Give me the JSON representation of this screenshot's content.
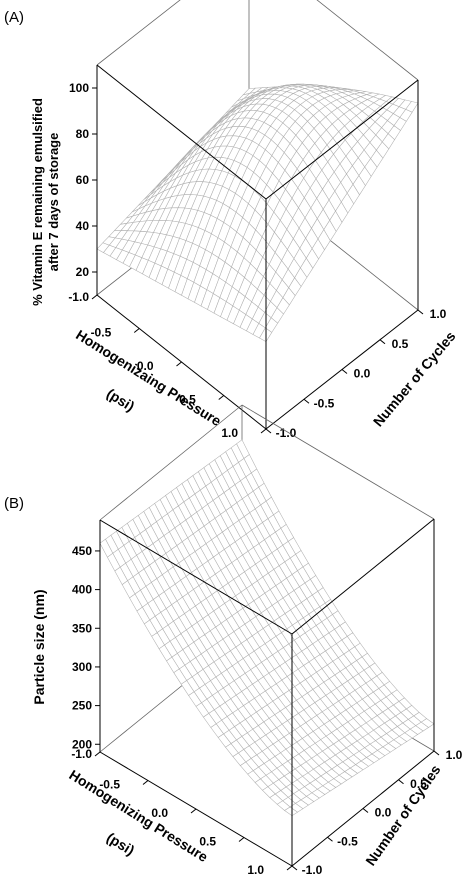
{
  "chart_data": [
    {
      "panel": "(A)",
      "type": "surface",
      "zlabel": "% Vitamin E remaining emulsified after 7 days of storage",
      "zlabel_lines": [
        "% Vitamin E remaining emulsified",
        "after 7 days of storage"
      ],
      "xlabel": "Homogenizaing Pressure (psi)",
      "xlabel_lines": [
        "Homogenizaing Pressure",
        "(psi)"
      ],
      "ylabel": "Number of Cycles",
      "x_ticks": [
        "-1.0",
        "-0.5",
        "0.0",
        "0.5",
        "1.0"
      ],
      "y_ticks": [
        "-1.0",
        "-0.5",
        "0.0",
        "0.5",
        "1.0"
      ],
      "z_ticks": [
        "20",
        "40",
        "60",
        "80",
        "100"
      ],
      "xlim": [
        -1,
        1
      ],
      "ylim": [
        -1,
        1
      ],
      "zlim": [
        10,
        110
      ],
      "grid_n": 26,
      "corner_values": {
        "p-1_c-1": 30,
        "p1_c-1": 48,
        "p-1_c1": 48,
        "p1_c1": 100
      },
      "peak": {
        "pressure": 0.6,
        "cycles": 0.7,
        "value": 108
      }
    },
    {
      "panel": "(B)",
      "type": "surface",
      "zlabel": "Particle size (nm)",
      "xlabel": "Homogenizing Pressure (psi)",
      "xlabel_lines": [
        "Homogenizing Pressure",
        "(psi)"
      ],
      "ylabel": "Number of Cycles",
      "x_ticks": [
        "-1.0",
        "-0.5",
        "0.0",
        "0.5",
        "1.0"
      ],
      "y_ticks": [
        "-1.0",
        "-0.5",
        "0.0",
        "0.5",
        "1.0"
      ],
      "z_ticks": [
        "200",
        "250",
        "300",
        "350",
        "400",
        "450"
      ],
      "xlim": [
        -1,
        1
      ],
      "ylim": [
        -1,
        1
      ],
      "zlim": [
        190,
        490
      ],
      "grid_n": 26,
      "corner_values": {
        "p-1_c-1": 460,
        "p1_c-1": 255,
        "p-1_c1": 445,
        "p1_c1": 225
      }
    }
  ]
}
